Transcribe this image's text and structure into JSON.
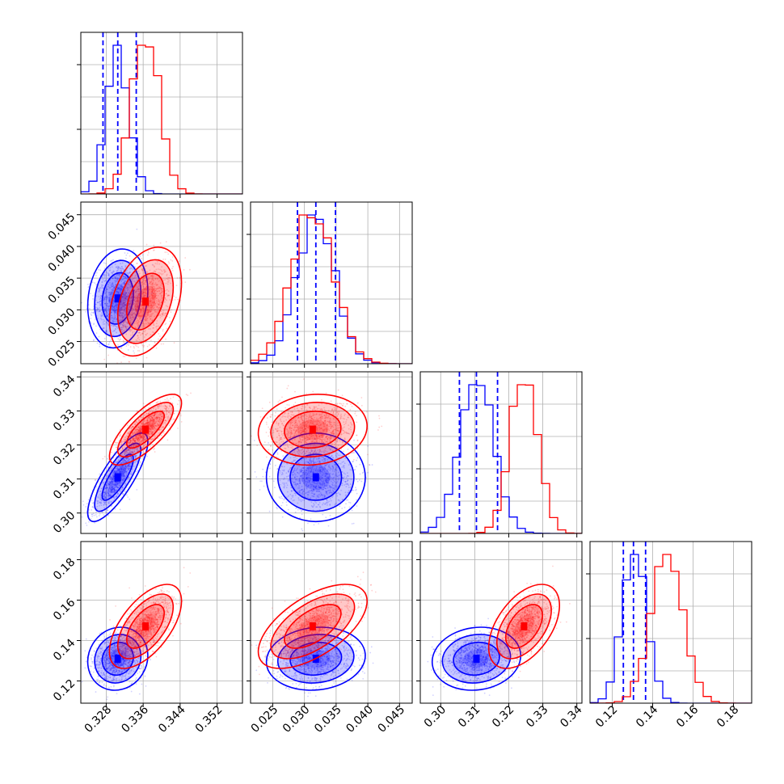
{
  "chart_data": {
    "type": "corner",
    "title": "",
    "parameters": [
      {
        "index": 0,
        "range": [
          0.3225,
          0.3575
        ],
        "ticks": [
          "0.328",
          "0.336",
          "0.344",
          "0.352"
        ],
        "tick_values": [
          0.328,
          0.336,
          0.344,
          0.352
        ]
      },
      {
        "index": 1,
        "range": [
          0.0215,
          0.047
        ],
        "ticks": [
          "0.025",
          "0.030",
          "0.035",
          "0.040",
          "0.045"
        ],
        "tick_values": [
          0.025,
          0.03,
          0.035,
          0.04,
          0.045
        ]
      },
      {
        "index": 2,
        "range": [
          0.294,
          0.3415
        ],
        "ticks": [
          "0.30",
          "0.31",
          "0.32",
          "0.33",
          "0.34"
        ],
        "tick_values": [
          0.3,
          0.31,
          0.32,
          0.33,
          0.34
        ]
      },
      {
        "index": 3,
        "range": [
          0.109,
          0.189
        ],
        "ticks": [
          "0.12",
          "0.14",
          "0.16",
          "0.18"
        ],
        "tick_values": [
          0.12,
          0.14,
          0.16,
          0.18
        ]
      }
    ],
    "grid": true,
    "series": [
      {
        "color": "#0000ff",
        "means": [
          0.3305,
          0.0318,
          0.3105,
          0.131
        ],
        "sigmas": [
          0.0025,
          0.003,
          0.005,
          0.006
        ],
        "quantiles": [
          [
            0.3273,
            0.3305,
            0.3345
          ],
          [
            0.0289,
            0.0318,
            0.0349
          ],
          [
            0.3055,
            0.3105,
            0.3167
          ],
          [
            0.1255,
            0.1305,
            0.1365
          ]
        ],
        "correlations": {
          "1,0": 0.15,
          "2,0": 0.8,
          "2,1": 0.0,
          "3,0": 0.1,
          "3,1": 0.1,
          "3,2": 0.1
        }
      },
      {
        "color": "#ff0000",
        "means": [
          0.3365,
          0.0313,
          0.3245,
          0.147
        ],
        "sigmas": [
          0.003,
          0.0033,
          0.004,
          0.008
        ],
        "quantiles": null,
        "correlations": {
          "1,0": 0.35,
          "2,0": 0.75,
          "2,1": 0.1,
          "3,0": 0.6,
          "3,1": 0.6,
          "3,2": 0.5
        }
      }
    ]
  }
}
